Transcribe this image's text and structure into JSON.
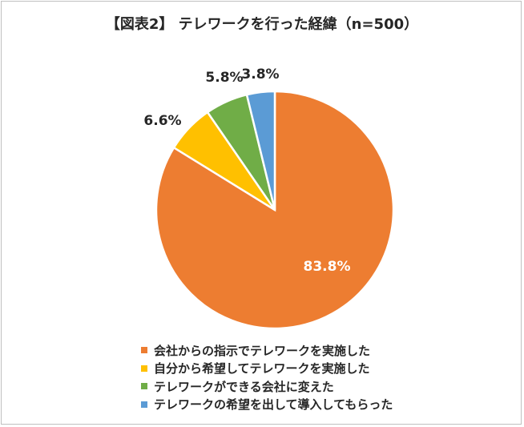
{
  "chart_data": {
    "type": "pie",
    "title": "【図表2】 テレワークを行った経緯（n=500）",
    "categories": [
      "会社からの指示でテレワークを実施した",
      "自分から希望してテレワークを実施した",
      "テレワークができる会社に変えた",
      "テレワークの希望を出して導入してもらった"
    ],
    "values": [
      83.8,
      6.6,
      5.8,
      3.8
    ],
    "labels": [
      "83.8%",
      "6.6%",
      "5.8%",
      "3.8%"
    ],
    "colors": [
      "#ED7D31",
      "#FFC000",
      "#70AD47",
      "#5B9BD5"
    ],
    "legend_position": "bottom"
  }
}
